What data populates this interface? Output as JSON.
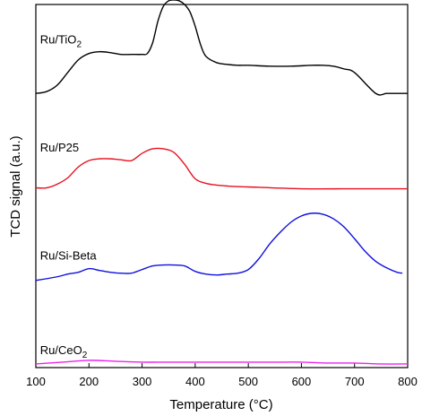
{
  "chart_data": {
    "type": "line",
    "xlabel": "Temperature (°C)",
    "ylabel": "TCD signal (a.u.)",
    "xlim": [
      100,
      800
    ],
    "ylim": [
      0,
      400
    ],
    "xticks": [
      100,
      200,
      300,
      400,
      500,
      600,
      700,
      800
    ],
    "grid": false,
    "legend": "none",
    "series": [
      {
        "name": "Ru/TiO2",
        "label_main": "Ru/TiO",
        "label_sub": "2",
        "color": "#000000",
        "label_x": 108,
        "label_y": 357,
        "x": [
          100,
          120,
          140,
          160,
          180,
          200,
          220,
          240,
          260,
          280,
          300,
          310,
          320,
          330,
          340,
          350,
          360,
          370,
          380,
          390,
          400,
          410,
          420,
          440,
          460,
          480,
          500,
          540,
          580,
          620,
          640,
          660,
          680,
          700,
          740,
          760,
          780,
          800
        ],
        "y": [
          302,
          304,
          311,
          325,
          339,
          346,
          348,
          347,
          345,
          345,
          345,
          346,
          358,
          382,
          398,
          404,
          405,
          404,
          400,
          392,
          376,
          356,
          343,
          336,
          334,
          333,
          333,
          332,
          332,
          333,
          333,
          332,
          329,
          325,
          302,
          302,
          302,
          302
        ]
      },
      {
        "name": "Ru/P25",
        "label_main": "Ru/P25",
        "label_sub": "",
        "color": "#e8101e",
        "label_x": 108,
        "label_y": 238,
        "x": [
          100,
          120,
          140,
          160,
          180,
          200,
          220,
          240,
          260,
          280,
          300,
          320,
          340,
          360,
          380,
          400,
          420,
          440,
          460,
          500,
          600,
          700,
          800
        ],
        "y": [
          198,
          198,
          202,
          209,
          221,
          228,
          230,
          230,
          229,
          228,
          236,
          241,
          241,
          237,
          224,
          208,
          203,
          201,
          200,
          199,
          197,
          197,
          197
        ]
      },
      {
        "name": "Ru/Si-Beta",
        "label_main": "Ru/Si-Beta",
        "label_sub": "",
        "color": "#1010e0",
        "label_x": 108,
        "label_y": 119,
        "x": [
          100,
          140,
          160,
          180,
          200,
          220,
          240,
          260,
          280,
          300,
          320,
          340,
          360,
          380,
          400,
          420,
          440,
          460,
          480,
          500,
          520,
          540,
          560,
          580,
          600,
          620,
          640,
          660,
          680,
          700,
          720,
          740,
          760,
          780,
          790
        ],
        "y": [
          96,
          100,
          103,
          105,
          109,
          107,
          105,
          104,
          104,
          108,
          112,
          113,
          113,
          112,
          106,
          103,
          102,
          103,
          104,
          108,
          120,
          136,
          149,
          160,
          167,
          170,
          169,
          164,
          155,
          142,
          128,
          117,
          110,
          105,
          104
        ]
      },
      {
        "name": "Ru/CeO2",
        "label_main": "Ru/CeO",
        "label_sub": "2",
        "color": "#ee22ee",
        "label_x": 108,
        "label_y": 15,
        "x": [
          100,
          150,
          200,
          250,
          300,
          350,
          400,
          450,
          500,
          550,
          600,
          650,
          700,
          750,
          800
        ],
        "y": [
          4,
          6,
          8,
          7,
          6,
          6,
          6,
          6,
          6,
          6,
          6,
          5,
          5,
          4,
          4
        ]
      }
    ]
  }
}
